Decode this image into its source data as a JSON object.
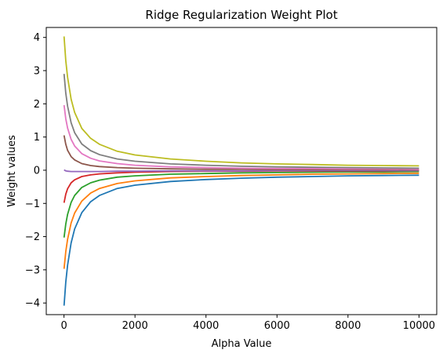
{
  "chart_data": {
    "type": "line",
    "title": "Ridge Regularization Weight Plot",
    "xlabel": "Alpha Value",
    "ylabel": "Weight values",
    "xlim": [
      -500,
      10500
    ],
    "ylim": [
      -4.35,
      4.3
    ],
    "xticks": [
      0,
      2000,
      4000,
      6000,
      8000,
      10000
    ],
    "yticks": [
      -4,
      -3,
      -2,
      -1,
      0,
      1,
      2,
      3,
      4
    ],
    "xtick_labels": [
      "0",
      "2000",
      "4000",
      "6000",
      "8000",
      "10000"
    ],
    "ytick_labels": [
      "−4",
      "−3",
      "−2",
      "−1",
      "0",
      "1",
      "2",
      "3",
      "4"
    ],
    "grid": false,
    "legend": "none",
    "x": [
      1,
      50,
      100,
      200,
      300,
      500,
      750,
      1000,
      1500,
      2000,
      3000,
      4000,
      5000,
      6000,
      7000,
      8000,
      9000,
      10000
    ],
    "series": [
      {
        "color": "#1f77b4",
        "values": [
          -4.08,
          -3.37,
          -2.86,
          -2.19,
          -1.77,
          -1.28,
          -0.95,
          -0.76,
          -0.55,
          -0.45,
          -0.34,
          -0.28,
          -0.24,
          -0.21,
          -0.19,
          -0.17,
          -0.16,
          -0.15
        ]
      },
      {
        "color": "#ff7f0e",
        "values": [
          -2.97,
          -2.45,
          -2.08,
          -1.59,
          -1.29,
          -0.93,
          -0.69,
          -0.55,
          -0.4,
          -0.32,
          -0.23,
          -0.19,
          -0.16,
          -0.14,
          -0.12,
          -0.11,
          -0.1,
          -0.09
        ]
      },
      {
        "color": "#2ca02c",
        "values": [
          -2.03,
          -1.62,
          -1.33,
          -0.97,
          -0.76,
          -0.52,
          -0.38,
          -0.3,
          -0.21,
          -0.17,
          -0.12,
          -0.1,
          -0.08,
          -0.07,
          -0.06,
          -0.05,
          -0.05,
          -0.04
        ]
      },
      {
        "color": "#d62728",
        "values": [
          -0.98,
          -0.72,
          -0.56,
          -0.38,
          -0.29,
          -0.19,
          -0.14,
          -0.11,
          -0.08,
          -0.06,
          -0.04,
          -0.03,
          -0.03,
          -0.02,
          -0.02,
          -0.02,
          -0.02,
          -0.01
        ]
      },
      {
        "color": "#9467bd",
        "values": [
          0.01,
          -0.02,
          -0.03,
          -0.04,
          -0.04,
          -0.04,
          -0.04,
          -0.04,
          -0.03,
          -0.03,
          -0.02,
          -0.02,
          -0.02,
          -0.01,
          -0.01,
          -0.01,
          -0.01,
          -0.01
        ]
      },
      {
        "color": "#8c564b",
        "values": [
          1.05,
          0.78,
          0.6,
          0.41,
          0.31,
          0.2,
          0.14,
          0.11,
          0.08,
          0.06,
          0.04,
          0.03,
          0.03,
          0.02,
          0.02,
          0.02,
          0.02,
          0.01
        ]
      },
      {
        "color": "#e377c2",
        "values": [
          1.96,
          1.55,
          1.27,
          0.93,
          0.73,
          0.5,
          0.36,
          0.28,
          0.2,
          0.15,
          0.1,
          0.08,
          0.06,
          0.05,
          0.05,
          0.04,
          0.04,
          0.03
        ]
      },
      {
        "color": "#7f7f7f",
        "values": [
          2.9,
          2.32,
          1.93,
          1.43,
          1.13,
          0.79,
          0.59,
          0.47,
          0.34,
          0.27,
          0.19,
          0.15,
          0.12,
          0.1,
          0.09,
          0.08,
          0.07,
          0.06
        ]
      },
      {
        "color": "#bcbd22",
        "values": [
          4.03,
          3.3,
          2.8,
          2.14,
          1.74,
          1.26,
          0.96,
          0.78,
          0.57,
          0.46,
          0.34,
          0.27,
          0.22,
          0.19,
          0.17,
          0.15,
          0.14,
          0.13
        ]
      }
    ]
  }
}
